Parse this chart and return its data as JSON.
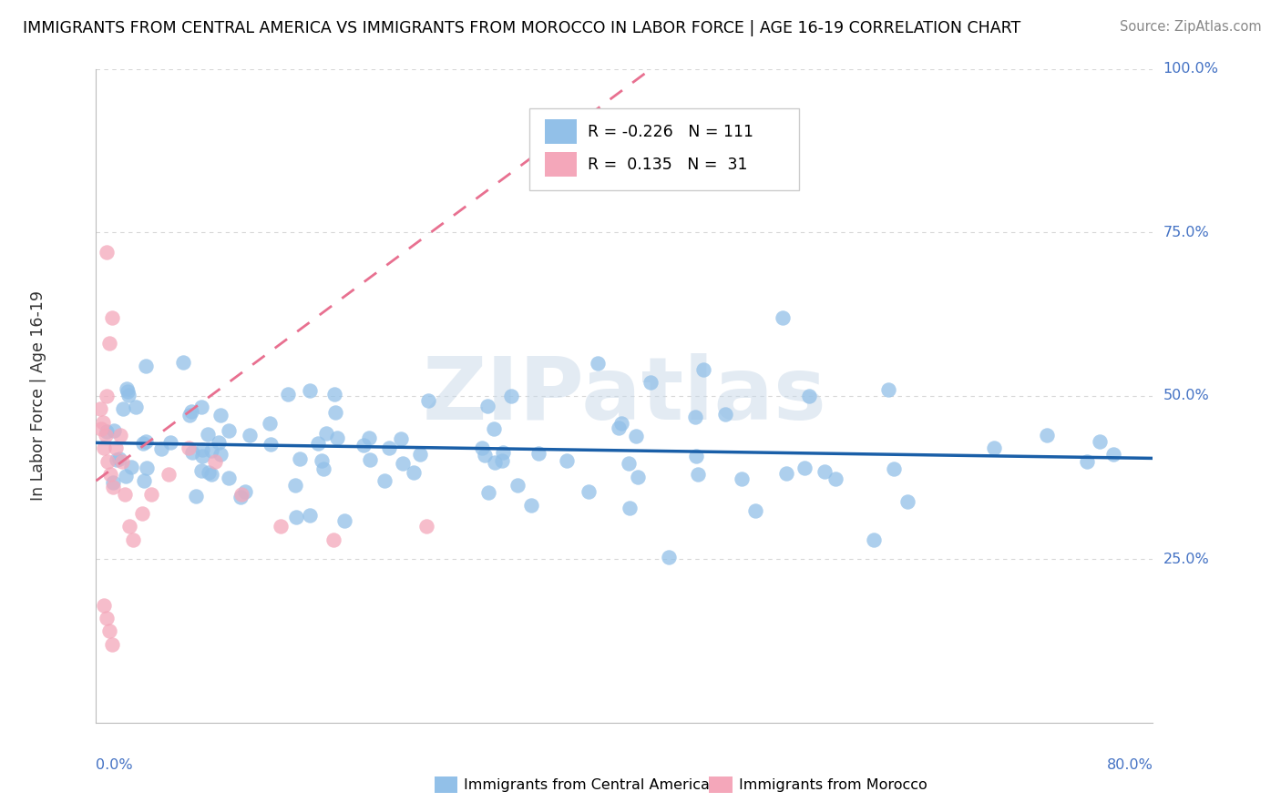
{
  "title": "IMMIGRANTS FROM CENTRAL AMERICA VS IMMIGRANTS FROM MOROCCO IN LABOR FORCE | AGE 16-19 CORRELATION CHART",
  "source": "Source: ZipAtlas.com",
  "ylabel": "In Labor Force | Age 16-19",
  "legend_r_blue": "-0.226",
  "legend_n_blue": "111",
  "legend_r_pink": "0.135",
  "legend_n_pink": "31",
  "blue_color": "#92c0e8",
  "pink_color": "#f4a7ba",
  "line_blue_color": "#1a5fa8",
  "line_pink_color": "#e87090",
  "watermark": "ZIPatlas",
  "xlim": [
    0.0,
    0.8
  ],
  "ylim": [
    0.0,
    1.0
  ],
  "background_color": "#ffffff",
  "grid_color": "#d8d8d8",
  "right_tick_color": "#4472c4",
  "xlabel_color": "#4472c4"
}
